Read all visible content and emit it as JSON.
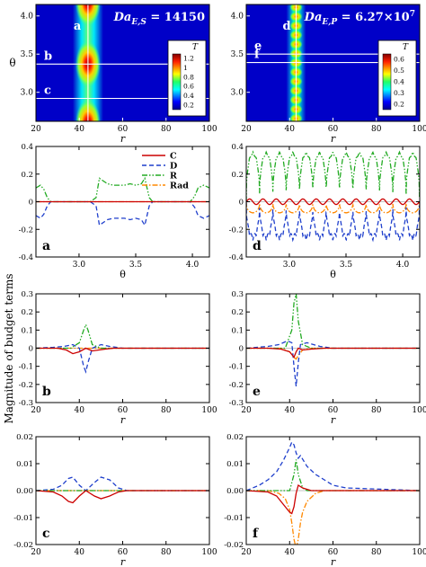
{
  "figure": {
    "ylabel_shared": "Magnitude of budget terms",
    "legend": [
      {
        "name": "C",
        "color": "#cc0000",
        "dash": "solid"
      },
      {
        "name": "D",
        "color": "#1f3fcc",
        "dash": "dashed"
      },
      {
        "name": "R",
        "color": "#22aa22",
        "dash": "dashdotdot"
      },
      {
        "name": "Rad",
        "color": "#ff8800",
        "dash": "dashdot"
      }
    ]
  },
  "chart_data": [
    {
      "id": "map-left",
      "type": "heatmap",
      "title": "Da_{E,S} = 14150",
      "xlabel": "r",
      "ylabel": "θ",
      "xlim": [
        20,
        100
      ],
      "ylim": [
        2.62,
        4.15
      ],
      "xticks": [
        "20",
        "40",
        "60",
        "80",
        "100"
      ],
      "yticks": [
        "3.0",
        "3.5",
        "4.0"
      ],
      "colorbar": {
        "label": "T",
        "ticks": [
          "0.2",
          "0.4",
          "0.6",
          "0.8",
          "1",
          "1.2"
        ],
        "range": [
          0.1,
          1.3
        ]
      },
      "cut_lines": [
        {
          "label": "b",
          "theta": 3.37
        },
        {
          "label": "c",
          "theta": 2.92
        }
      ],
      "vertical_cut": {
        "label": "a",
        "r": 44
      },
      "hotspots": [
        {
          "r": 44,
          "theta": 4.17,
          "T": 1.15
        },
        {
          "r": 44,
          "theta": 3.37,
          "T": 1.25
        },
        {
          "r": 44,
          "theta": 2.6,
          "T": 1.15
        }
      ]
    },
    {
      "id": "map-right",
      "type": "heatmap",
      "title": "Da_{E,P} = 6.27×10^7",
      "xlabel": "r",
      "ylabel": "",
      "xlim": [
        20,
        100
      ],
      "ylim": [
        2.62,
        4.15
      ],
      "xticks": [
        "20",
        "40",
        "60",
        "80",
        "100"
      ],
      "yticks": [
        "3.0",
        "3.5",
        "4.0"
      ],
      "colorbar": {
        "label": "T",
        "ticks": [
          "0.2",
          "0.3",
          "0.4",
          "0.5",
          "0.6"
        ],
        "range": [
          0.15,
          0.65
        ]
      },
      "cut_lines": [
        {
          "label": "e",
          "theta": 3.5
        },
        {
          "label": "f",
          "theta": 3.39
        }
      ],
      "vertical_cut": {
        "label": "d",
        "r": 43
      },
      "hotspot_count": 13
    },
    {
      "id": "panel-a",
      "type": "line",
      "panel_label": "a",
      "xlabel": "θ",
      "xlim": [
        2.62,
        4.15
      ],
      "ylim": [
        -0.4,
        0.4
      ],
      "xticks": [
        "3.0",
        "3.5",
        "4.0"
      ],
      "yticks": [
        "-0.4",
        "-0.2",
        "0",
        "0.2",
        "0.4"
      ],
      "series": [
        {
          "name": "C",
          "x": [
            2.62,
            4.15
          ],
          "y": [
            0.0,
            0.0
          ]
        },
        {
          "name": "D",
          "x": [
            2.62,
            2.66,
            2.69,
            2.72,
            2.75,
            2.8,
            2.9,
            3.1,
            3.15,
            3.18,
            3.25,
            3.3,
            3.4,
            3.45,
            3.5,
            3.55,
            3.58,
            3.62,
            3.65,
            3.7,
            3.8,
            3.98,
            4.02,
            4.05,
            4.1,
            4.15
          ],
          "y": [
            -0.1,
            -0.12,
            -0.09,
            -0.03,
            0.0,
            0.0,
            0.0,
            0.0,
            -0.03,
            -0.17,
            -0.13,
            -0.12,
            -0.12,
            -0.13,
            -0.12,
            -0.13,
            -0.17,
            -0.03,
            0.0,
            0.0,
            0.0,
            0.0,
            -0.04,
            -0.1,
            -0.12,
            -0.1
          ]
        },
        {
          "name": "R",
          "x": [
            2.62,
            2.66,
            2.69,
            2.72,
            2.75,
            2.8,
            2.9,
            3.1,
            3.15,
            3.18,
            3.25,
            3.3,
            3.4,
            3.45,
            3.5,
            3.55,
            3.58,
            3.62,
            3.65,
            3.7,
            3.8,
            3.98,
            4.02,
            4.05,
            4.1,
            4.15
          ],
          "y": [
            0.1,
            0.12,
            0.09,
            0.03,
            0.0,
            0.0,
            0.0,
            0.0,
            0.03,
            0.17,
            0.13,
            0.12,
            0.12,
            0.13,
            0.12,
            0.13,
            0.17,
            0.03,
            0.0,
            0.0,
            0.0,
            0.0,
            0.04,
            0.1,
            0.12,
            0.1
          ]
        },
        {
          "name": "Rad",
          "x": [
            2.62,
            4.15
          ],
          "y": [
            0.0,
            0.0
          ]
        }
      ]
    },
    {
      "id": "panel-d",
      "type": "line",
      "panel_label": "d",
      "xlabel": "θ",
      "xlim": [
        2.62,
        4.15
      ],
      "ylim": [
        -0.4,
        0.4
      ],
      "xticks": [
        "3.0",
        "3.5",
        "4.0"
      ],
      "yticks": [
        "-0.4",
        "-0.2",
        "0",
        "0.2",
        "0.4"
      ],
      "periodic": {
        "period": 0.1175,
        "phase": 2.62,
        "amplitude_R": 0.36,
        "amplitude_D": 0.28,
        "amplitude_Rad": 0.08,
        "amplitude_C": 0.02
      }
    },
    {
      "id": "panel-b",
      "type": "line",
      "panel_label": "b",
      "xlabel": "r",
      "xlim": [
        20,
        100
      ],
      "ylim": [
        -0.3,
        0.3
      ],
      "xticks": [
        "20",
        "40",
        "60",
        "80",
        "100"
      ],
      "yticks": [
        "-0.3",
        "-0.2",
        "-0.1",
        "0",
        "0.1",
        "0.2",
        "0.3"
      ],
      "series": [
        {
          "name": "C",
          "x": [
            20,
            30,
            34,
            37,
            40,
            43,
            46,
            49,
            52,
            56,
            60,
            100
          ],
          "y": [
            0,
            0,
            -0.01,
            -0.03,
            -0.02,
            0.0,
            -0.015,
            -0.01,
            -0.005,
            0,
            0,
            0
          ]
        },
        {
          "name": "D",
          "x": [
            20,
            28,
            33,
            37,
            40,
            42,
            43,
            44,
            46,
            50,
            54,
            60,
            100
          ],
          "y": [
            0,
            0.005,
            0.01,
            0.02,
            0.0,
            -0.1,
            -0.13,
            -0.08,
            0.0,
            0.02,
            0.01,
            0.0,
            0
          ]
        },
        {
          "name": "R",
          "x": [
            20,
            36,
            40,
            42,
            43,
            44,
            46,
            50,
            100
          ],
          "y": [
            0,
            0,
            0.03,
            0.1,
            0.13,
            0.1,
            0.02,
            0,
            0
          ]
        },
        {
          "name": "Rad",
          "x": [
            20,
            100
          ],
          "y": [
            0,
            0
          ]
        }
      ]
    },
    {
      "id": "panel-e",
      "type": "line",
      "panel_label": "e",
      "xlabel": "r",
      "xlim": [
        20,
        100
      ],
      "ylim": [
        -0.3,
        0.3
      ],
      "xticks": [
        "20",
        "40",
        "60",
        "80",
        "100"
      ],
      "yticks": [
        "-0.3",
        "-0.2",
        "-0.1",
        "0",
        "0.1",
        "0.2",
        "0.3"
      ],
      "series": [
        {
          "name": "C",
          "x": [
            20,
            30,
            36,
            40,
            42,
            43,
            44,
            46,
            50,
            56,
            100
          ],
          "y": [
            0,
            0,
            -0.005,
            -0.02,
            -0.05,
            -0.02,
            0.0,
            -0.01,
            -0.005,
            0,
            0
          ]
        },
        {
          "name": "D",
          "x": [
            20,
            30,
            35,
            39,
            41,
            42,
            43,
            44,
            45,
            48,
            54,
            60,
            100
          ],
          "y": [
            0,
            0.01,
            0.02,
            0.04,
            0.03,
            -0.1,
            -0.21,
            -0.08,
            0.02,
            0.03,
            0.01,
            0,
            0
          ]
        },
        {
          "name": "R",
          "x": [
            20,
            38,
            41,
            42,
            43,
            44,
            46,
            50,
            100
          ],
          "y": [
            0,
            0,
            0.1,
            0.25,
            0.3,
            0.15,
            0.02,
            0,
            0
          ]
        },
        {
          "name": "Rad",
          "x": [
            20,
            36,
            40,
            42,
            43,
            44,
            46,
            50,
            100
          ],
          "y": [
            0,
            0,
            -0.02,
            -0.05,
            -0.06,
            -0.04,
            -0.01,
            0,
            0
          ]
        }
      ]
    },
    {
      "id": "panel-c",
      "type": "line",
      "panel_label": "c",
      "xlabel": "r",
      "xlim": [
        20,
        100
      ],
      "ylim": [
        -0.02,
        0.02
      ],
      "xticks": [
        "20",
        "40",
        "60",
        "80",
        "100"
      ],
      "yticks": [
        "-0.02",
        "-0.01",
        "0.00",
        "0.01",
        "0.02"
      ],
      "series": [
        {
          "name": "C",
          "x": [
            20,
            28,
            32,
            35,
            37,
            40,
            43,
            47,
            50,
            54,
            58,
            62,
            100
          ],
          "y": [
            0,
            -0.0005,
            -0.002,
            -0.004,
            -0.0045,
            -0.002,
            0.0,
            -0.002,
            -0.003,
            -0.002,
            -0.0005,
            0,
            0
          ]
        },
        {
          "name": "D",
          "x": [
            20,
            28,
            32,
            35,
            37,
            40,
            43,
            47,
            50,
            54,
            58,
            62,
            100
          ],
          "y": [
            0,
            0.0005,
            0.002,
            0.0045,
            0.005,
            0.002,
            0.0,
            0.003,
            0.005,
            0.004,
            0.001,
            0,
            0
          ]
        },
        {
          "name": "R",
          "x": [
            20,
            100
          ],
          "y": [
            0,
            0
          ]
        },
        {
          "name": "Rad",
          "x": [
            20,
            100
          ],
          "y": [
            0,
            0
          ]
        }
      ]
    },
    {
      "id": "panel-f",
      "type": "line",
      "panel_label": "f",
      "xlabel": "r",
      "xlim": [
        20,
        100
      ],
      "ylim": [
        -0.02,
        0.02
      ],
      "xticks": [
        "20",
        "40",
        "60",
        "80",
        "100"
      ],
      "yticks": [
        "-0.02",
        "-0.01",
        "0.00",
        "0.01",
        "0.02"
      ],
      "series": [
        {
          "name": "C",
          "x": [
            20,
            30,
            34,
            37,
            40,
            41,
            42,
            43,
            44,
            46,
            50,
            56,
            100
          ],
          "y": [
            0,
            -0.0005,
            -0.002,
            -0.005,
            -0.008,
            -0.0085,
            -0.006,
            -0.001,
            0.002,
            0.001,
            0.0,
            0,
            0
          ]
        },
        {
          "name": "D",
          "x": [
            20,
            26,
            30,
            34,
            37,
            40,
            41,
            42,
            43,
            44,
            45,
            48,
            52,
            56,
            60,
            66,
            100
          ],
          "y": [
            0,
            0.002,
            0.004,
            0.007,
            0.011,
            0.016,
            0.018,
            0.017,
            0.014,
            0.012,
            0.013,
            0.009,
            0.006,
            0.004,
            0.002,
            0.001,
            0
          ]
        },
        {
          "name": "R",
          "x": [
            20,
            40,
            42,
            43,
            44,
            46,
            48,
            100
          ],
          "y": [
            0,
            0,
            0.006,
            0.0115,
            0.006,
            0.001,
            0,
            0
          ]
        },
        {
          "name": "Rad",
          "x": [
            20,
            30,
            35,
            38,
            40,
            41,
            42,
            43,
            44,
            45,
            46,
            48,
            52,
            56,
            60,
            100
          ],
          "y": [
            0,
            0,
            -0.001,
            -0.003,
            -0.007,
            -0.012,
            -0.018,
            -0.0215,
            -0.018,
            -0.012,
            -0.008,
            -0.004,
            -0.001,
            0,
            0,
            0
          ]
        }
      ]
    }
  ]
}
